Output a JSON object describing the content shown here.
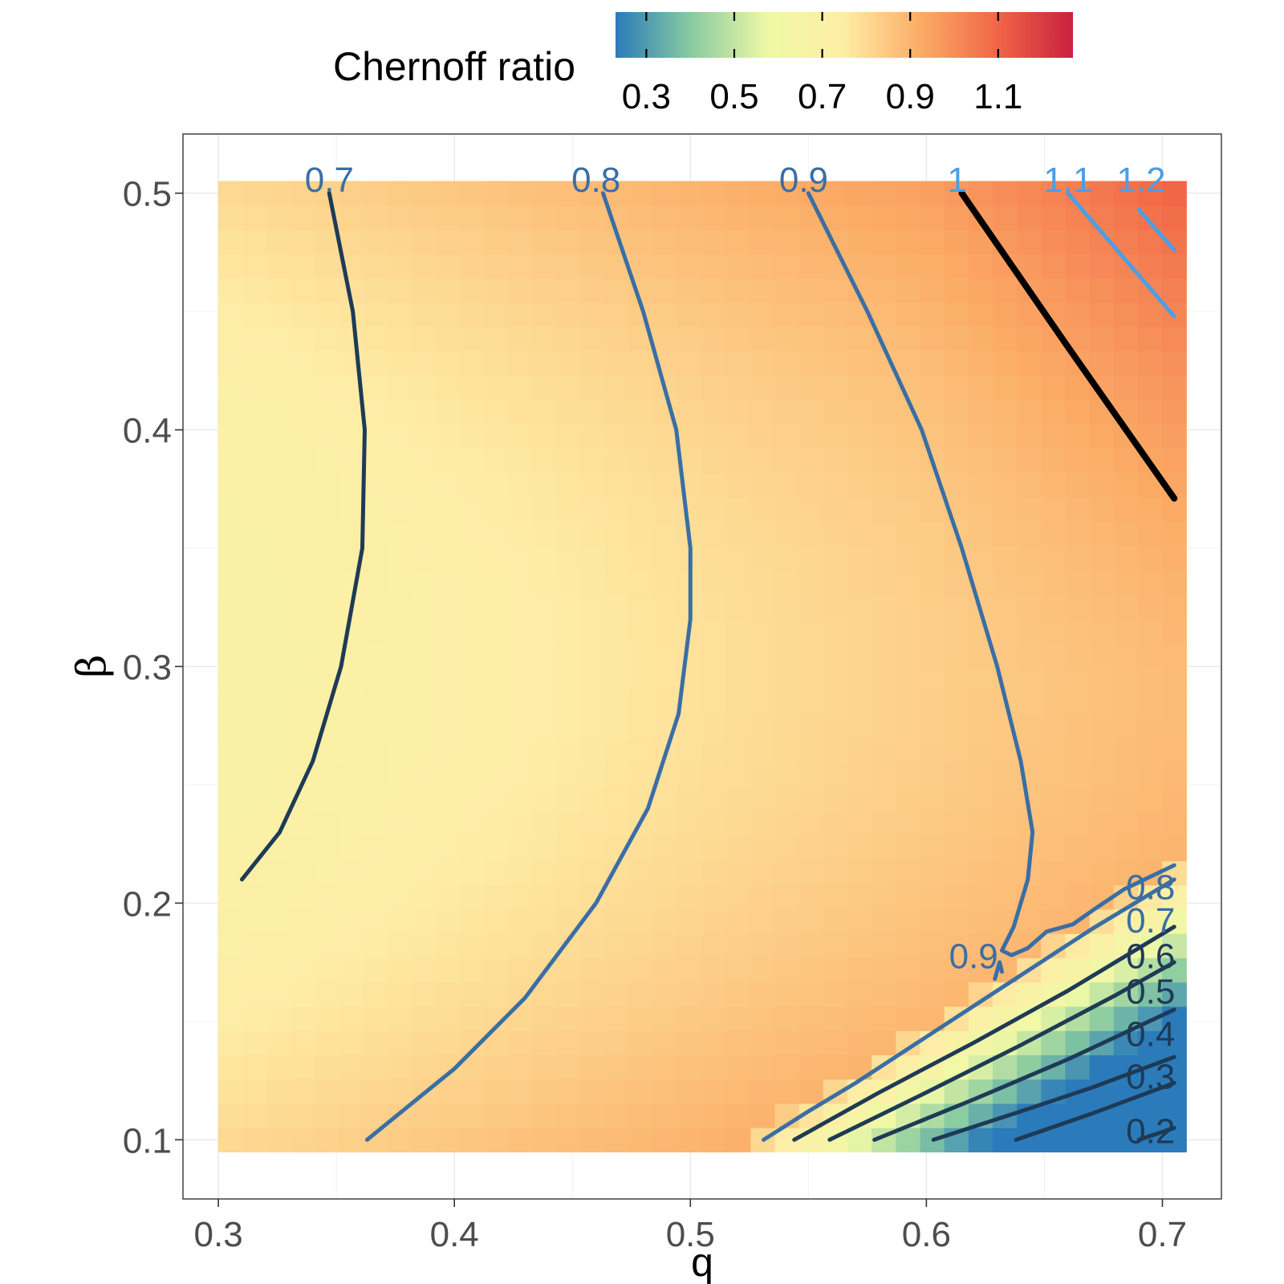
{
  "chart_data": {
    "type": "heatmap",
    "xlabel": "q",
    "ylabel": "β",
    "xlim": [
      0.285,
      0.725
    ],
    "ylim": [
      0.075,
      0.525
    ],
    "x_ticks": [
      "0.3",
      "0.4",
      "0.5",
      "0.6",
      "0.7"
    ],
    "y_ticks": [
      "0.1",
      "0.2",
      "0.3",
      "0.4",
      "0.5"
    ],
    "x_grid": [
      0.305,
      0.705
    ],
    "y_grid": [
      0.1,
      0.5
    ],
    "grid": true,
    "legend": {
      "title": "Chernoff ratio",
      "position": "top",
      "range": [
        0.23,
        1.27
      ],
      "ticks": [
        "0.3",
        "0.5",
        "0.7",
        "0.9",
        "1.1"
      ],
      "colors": [
        "#2b7bba",
        "#89cba0",
        "#eff9a6",
        "#feeda6",
        "#fbac66",
        "#f16647",
        "#c9213f"
      ]
    },
    "colors": {
      "contour_low": "#1e3a56",
      "contour_mid": "#3a6ea5",
      "contour_high": "#4c9ee5",
      "contour_one": "#000000"
    },
    "contours": [
      {
        "level": 0.7,
        "label": "0.7",
        "label_at": [
          0.347,
          0.506
        ],
        "points": [
          [
            0.347,
            0.5
          ],
          [
            0.357,
            0.45
          ],
          [
            0.362,
            0.4
          ],
          [
            0.361,
            0.35
          ],
          [
            0.352,
            0.3
          ],
          [
            0.34,
            0.26
          ],
          [
            0.326,
            0.23
          ],
          [
            0.31,
            0.21
          ]
        ]
      },
      {
        "level": 0.8,
        "label": "0.8",
        "label_at": [
          0.46,
          0.506
        ],
        "points": [
          [
            0.463,
            0.5
          ],
          [
            0.48,
            0.45
          ],
          [
            0.494,
            0.4
          ],
          [
            0.5,
            0.35
          ],
          [
            0.5,
            0.32
          ],
          [
            0.495,
            0.28
          ],
          [
            0.482,
            0.24
          ],
          [
            0.46,
            0.2
          ],
          [
            0.43,
            0.16
          ],
          [
            0.4,
            0.13
          ],
          [
            0.363,
            0.1
          ]
        ]
      },
      {
        "level": 0.9,
        "label": "0.9",
        "label_at": [
          0.548,
          0.506
        ],
        "points": [
          [
            0.55,
            0.5
          ],
          [
            0.575,
            0.45
          ],
          [
            0.598,
            0.4
          ],
          [
            0.615,
            0.35
          ],
          [
            0.63,
            0.3
          ],
          [
            0.64,
            0.26
          ],
          [
            0.645,
            0.23
          ],
          [
            0.643,
            0.21
          ],
          [
            0.637,
            0.19
          ],
          [
            0.632,
            0.18
          ],
          [
            0.636,
            0.178
          ],
          [
            0.643,
            0.181
          ],
          [
            0.651,
            0.188
          ],
          [
            0.662,
            0.191
          ],
          [
            0.672,
            0.198
          ],
          [
            0.684,
            0.206
          ],
          [
            0.705,
            0.216
          ]
        ]
      },
      {
        "level": 0.9,
        "label": "0.9",
        "label_at": [
          0.62,
          0.178
        ],
        "points": [
          [
            0.629,
            0.168
          ],
          [
            0.631,
            0.175
          ],
          [
            0.632,
            0.171
          ]
        ]
      },
      {
        "level": 1.0,
        "label": "1",
        "label_at": [
          0.613,
          0.506
        ],
        "points": [
          [
            0.615,
            0.5
          ],
          [
            0.66,
            0.435
          ],
          [
            0.705,
            0.371
          ]
        ]
      },
      {
        "level": 1.1,
        "label": "1.1",
        "label_at": [
          0.66,
          0.506
        ],
        "points": [
          [
            0.66,
            0.5
          ],
          [
            0.705,
            0.448
          ]
        ]
      },
      {
        "level": 1.2,
        "label": "1.2",
        "label_at": [
          0.691,
          0.506
        ],
        "points": [
          [
            0.69,
            0.493
          ],
          [
            0.705,
            0.476
          ]
        ]
      },
      {
        "level": 0.8,
        "label": "0.8",
        "label_at": [
          0.695,
          0.207
        ],
        "points": [
          [
            0.531,
            0.1
          ],
          [
            0.55,
            0.112
          ],
          [
            0.57,
            0.124
          ],
          [
            0.59,
            0.137
          ],
          [
            0.61,
            0.15
          ],
          [
            0.63,
            0.163
          ],
          [
            0.65,
            0.176
          ],
          [
            0.67,
            0.189
          ],
          [
            0.69,
            0.201
          ],
          [
            0.705,
            0.21
          ]
        ]
      },
      {
        "level": 0.7,
        "label": "0.7",
        "label_at": [
          0.695,
          0.193
        ],
        "points": [
          [
            0.544,
            0.1
          ],
          [
            0.58,
            0.12
          ],
          [
            0.62,
            0.141
          ],
          [
            0.66,
            0.163
          ],
          [
            0.705,
            0.19
          ]
        ]
      },
      {
        "level": 0.6,
        "label": "0.6",
        "label_at": [
          0.695,
          0.178
        ],
        "points": [
          [
            0.559,
            0.1
          ],
          [
            0.6,
            0.12
          ],
          [
            0.64,
            0.14
          ],
          [
            0.68,
            0.161
          ],
          [
            0.705,
            0.175
          ]
        ]
      },
      {
        "level": 0.5,
        "label": "0.5",
        "label_at": [
          0.695,
          0.163
        ],
        "points": [
          [
            0.578,
            0.1
          ],
          [
            0.62,
            0.117
          ],
          [
            0.66,
            0.134
          ],
          [
            0.705,
            0.155
          ]
        ]
      },
      {
        "level": 0.4,
        "label": "0.4",
        "label_at": [
          0.695,
          0.145
        ],
        "points": [
          [
            0.603,
            0.1
          ],
          [
            0.64,
            0.112
          ],
          [
            0.67,
            0.122
          ],
          [
            0.705,
            0.135
          ]
        ]
      },
      {
        "level": 0.3,
        "label": "0.3",
        "label_at": [
          0.695,
          0.127
        ],
        "points": [
          [
            0.638,
            0.1
          ],
          [
            0.67,
            0.111
          ],
          [
            0.705,
            0.124
          ]
        ]
      },
      {
        "level": 0.2,
        "label": "0.2",
        "label_at": [
          0.695,
          0.104
        ],
        "points": [
          [
            0.69,
            0.1
          ],
          [
            0.705,
            0.105
          ]
        ]
      }
    ]
  }
}
